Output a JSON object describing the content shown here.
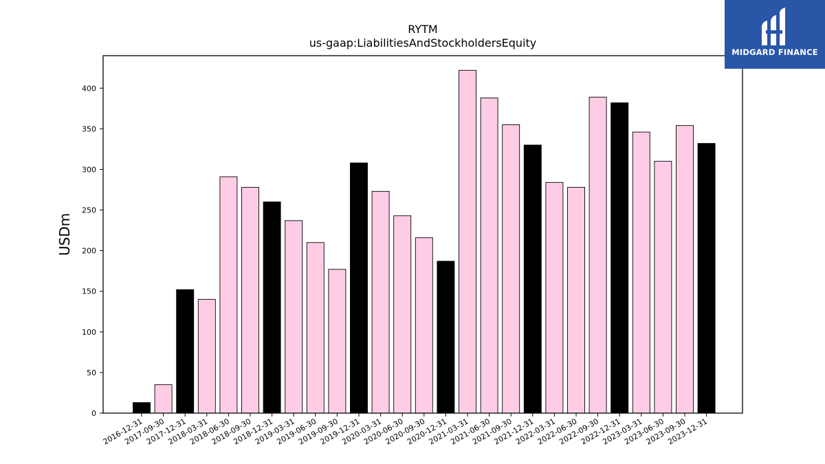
{
  "chart_data": {
    "type": "bar",
    "title": "RYTM",
    "subtitle": "us-gaap:LiabilitiesAndStockholdersEquity",
    "xlabel": "",
    "ylabel": "USDm",
    "ylim": [
      0,
      440
    ],
    "yticks": [
      0,
      50,
      100,
      150,
      200,
      250,
      300,
      350,
      400
    ],
    "grid": false,
    "categories": [
      "2016-12-31",
      "2017-09-30",
      "2017-12-31",
      "2018-03-31",
      "2018-06-30",
      "2018-09-30",
      "2018-12-31",
      "2019-03-31",
      "2019-06-30",
      "2019-09-30",
      "2019-12-31",
      "2020-03-31",
      "2020-06-30",
      "2020-09-30",
      "2020-12-31",
      "2021-03-31",
      "2021-06-30",
      "2021-09-30",
      "2021-12-31",
      "2022-03-31",
      "2022-06-30",
      "2022-09-30",
      "2022-12-31",
      "2023-03-31",
      "2023-06-30",
      "2023-09-30",
      "2023-12-31"
    ],
    "values": [
      13,
      35,
      152,
      140,
      291,
      278,
      260,
      237,
      210,
      177,
      308,
      273,
      243,
      216,
      187,
      422,
      388,
      355,
      330,
      284,
      278,
      389,
      382,
      346,
      310,
      354,
      332
    ],
    "colors": {
      "annual": "#000000",
      "quarterly": "#ffcce6",
      "edge": "#000000"
    }
  },
  "logo": {
    "text": "MIDGARD FINANCE",
    "background": "#2a56a8"
  }
}
